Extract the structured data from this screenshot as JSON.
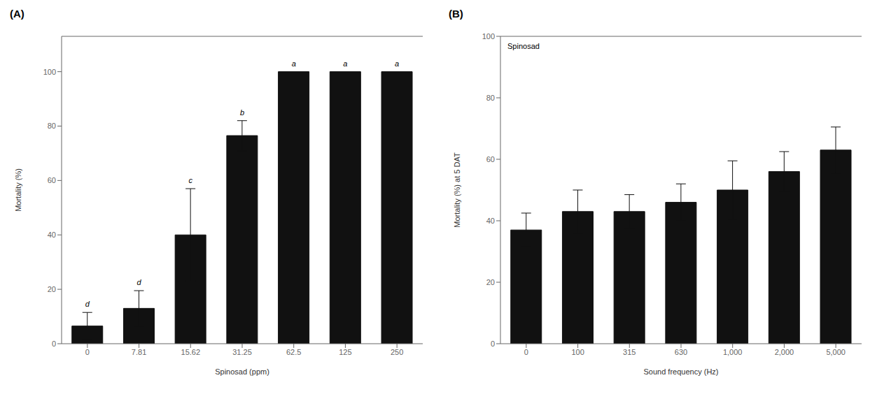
{
  "chart_data": [
    {
      "type": "bar",
      "title": "(A)",
      "categories": [
        "0",
        "7.81",
        "15.62",
        "31.25",
        "62.5",
        "125",
        "250"
      ],
      "values": [
        6.5,
        13.0,
        40.0,
        76.5,
        100.0,
        100.0,
        100.0
      ],
      "errors": [
        5.0,
        6.5,
        17.0,
        5.5,
        0.0,
        0.0,
        0.0
      ],
      "annotations": [
        "d",
        "d",
        "c",
        "b",
        "a",
        "a",
        "a"
      ],
      "xlabel": "Spinosad (ppm)",
      "ylabel": "Mortality (%)",
      "ylim": [
        0,
        113
      ],
      "yticks": [
        0,
        20,
        40,
        60,
        80,
        100
      ],
      "color": "#111111",
      "grid": false
    },
    {
      "type": "bar",
      "title": "(B)",
      "categories": [
        "0",
        "100",
        "315",
        "630",
        "1,000",
        "2,000",
        "5,000"
      ],
      "values": [
        37.0,
        43.0,
        43.0,
        46.0,
        50.0,
        56.0,
        63.0
      ],
      "errors": [
        5.5,
        7.0,
        5.5,
        6.0,
        9.5,
        6.5,
        7.5
      ],
      "annotations": [
        "Spinosad"
      ],
      "xlabel": "Sound frequency (Hz)",
      "ylabel": "Mortality (%) at 5 DAT",
      "ylim": [
        0,
        100
      ],
      "yticks": [
        0,
        20,
        40,
        60,
        80,
        100
      ],
      "color": "#111111",
      "grid": false
    }
  ]
}
